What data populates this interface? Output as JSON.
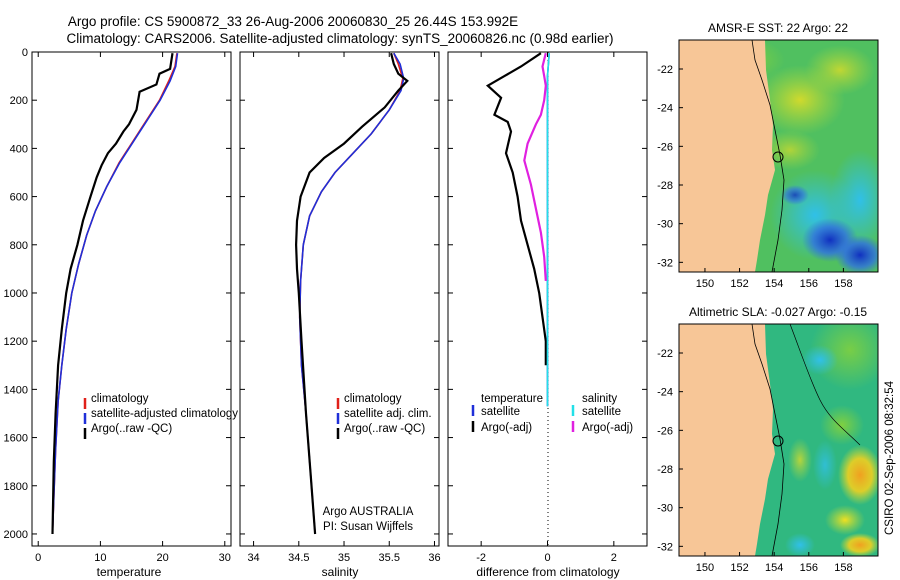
{
  "header": {
    "title_line1": "Argo profile: CS 5900872_33 26-Aug-2006 20060830_25 26.44S 153.992E",
    "title_line2": "Climatology: CARS2006. Satellite-adjusted climatology: synTS_20060826.nc (0.98d earlier)"
  },
  "credit": {
    "argo": "Argo AUSTRALIA",
    "pi": "PI: Susan Wijffels",
    "stamp": "CSIRO 02-Sep-2006 08:32:54"
  },
  "colors": {
    "climatology": "#e0201a",
    "satellite": "#1f2fd8",
    "argo": "#000000",
    "sal_sat": "#22e0e8",
    "sal_argo": "#e020e0",
    "land": "#f7c697"
  },
  "chart_data": [
    {
      "id": "temperature",
      "type": "line",
      "xlabel": "temperature",
      "xlim": [
        -1,
        31
      ],
      "ylim": [
        2050,
        0
      ],
      "y_reversed": true,
      "xticks": [
        0,
        10,
        20,
        30
      ],
      "yticks": [
        0,
        200,
        400,
        600,
        800,
        1000,
        1200,
        1400,
        1600,
        1800,
        2000
      ],
      "legend": [
        "climatology",
        "satellite-adjusted climatology",
        "Argo(..raw -QC)"
      ],
      "series": [
        {
          "name": "climatology",
          "x": [
            22.3,
            22.0,
            21.0,
            19.5,
            17.5,
            15.5,
            13.0,
            11.0,
            9.2,
            7.8,
            6.5,
            5.4,
            4.5,
            3.8,
            3.2,
            2.8,
            2.5,
            2.3
          ],
          "y": [
            5,
            60,
            120,
            200,
            280,
            360,
            460,
            560,
            660,
            760,
            880,
            1000,
            1150,
            1300,
            1450,
            1650,
            1850,
            2000
          ]
        },
        {
          "name": "satellite-adjusted climatology",
          "x": [
            22.4,
            22.1,
            21.2,
            19.6,
            17.6,
            15.6,
            13.1,
            11.0,
            9.2,
            7.8,
            6.5,
            5.4,
            4.5,
            3.8,
            3.2,
            2.8,
            2.5,
            2.3
          ],
          "y": [
            5,
            60,
            120,
            200,
            280,
            360,
            460,
            560,
            660,
            760,
            880,
            1000,
            1150,
            1300,
            1450,
            1650,
            1850,
            2000
          ]
        },
        {
          "name": "Argo(..raw -QC)",
          "x": [
            21.6,
            21.2,
            19.5,
            19.0,
            16.3,
            15.8,
            14.6,
            13.7,
            12.5,
            11.2,
            10.2,
            9.4,
            8.4,
            7.2,
            6.3,
            5.2,
            4.5,
            3.8,
            3.2,
            2.8,
            2.5,
            2.3
          ],
          "y": [
            5,
            70,
            90,
            135,
            165,
            240,
            300,
            330,
            380,
            420,
            470,
            520,
            600,
            700,
            800,
            900,
            1000,
            1150,
            1300,
            1500,
            1700,
            2000
          ]
        }
      ]
    },
    {
      "id": "salinity",
      "type": "line",
      "xlabel": "salinity",
      "xlim": [
        33.85,
        36.05
      ],
      "ylim": [
        2050,
        0
      ],
      "y_reversed": true,
      "xticks": [
        34,
        34.5,
        35,
        35.5,
        36
      ],
      "legend": [
        "climatology",
        "satellite adj. clim.",
        "Argo(..raw -QC)"
      ],
      "series": [
        {
          "name": "climatology",
          "x": [
            35.55,
            35.6,
            35.65,
            35.62,
            35.5,
            35.3,
            35.1,
            34.9,
            34.75,
            34.62,
            34.55,
            34.52,
            34.51,
            34.53,
            34.58,
            34.63,
            34.68
          ],
          "y": [
            5,
            50,
            110,
            160,
            240,
            340,
            420,
            500,
            580,
            680,
            800,
            950,
            1100,
            1300,
            1500,
            1750,
            2000
          ]
        },
        {
          "name": "satellite adj. clim.",
          "x": [
            35.55,
            35.62,
            35.66,
            35.63,
            35.5,
            35.3,
            35.1,
            34.9,
            34.75,
            34.62,
            34.55,
            34.52,
            34.51,
            34.53,
            34.58,
            34.63,
            34.68
          ],
          "y": [
            5,
            50,
            110,
            160,
            240,
            340,
            420,
            500,
            580,
            680,
            800,
            950,
            1100,
            1300,
            1500,
            1750,
            2000
          ]
        },
        {
          "name": "Argo(..raw -QC)",
          "x": [
            35.52,
            35.55,
            35.6,
            35.7,
            35.6,
            35.45,
            35.2,
            35.0,
            34.78,
            34.62,
            34.52,
            34.48,
            34.47,
            34.48,
            34.5,
            34.53,
            34.58,
            34.63,
            34.68
          ],
          "y": [
            5,
            50,
            90,
            120,
            160,
            230,
            310,
            380,
            440,
            500,
            600,
            700,
            800,
            900,
            1000,
            1200,
            1500,
            1750,
            2000
          ]
        }
      ]
    },
    {
      "id": "difference",
      "type": "line",
      "xlabel": "difference from climatology",
      "xlim": [
        -3,
        3
      ],
      "ylim": [
        2050,
        0
      ],
      "y_reversed": true,
      "xticks": [
        -2,
        0,
        2
      ],
      "legend_groups": [
        {
          "title": "temperature",
          "items": [
            "satellite",
            "Argo(-adj)"
          ]
        },
        {
          "title": "salinity",
          "items": [
            "satellite",
            "Argo(-adj)"
          ]
        }
      ],
      "series": [
        {
          "name": "temperature satellite",
          "x": [
            0.05,
            0.0,
            0.0,
            0.0,
            0.0
          ],
          "y": [
            5,
            100,
            500,
            1000,
            1470
          ]
        },
        {
          "name": "temperature Argo(-adj)",
          "x": [
            -0.2,
            -0.8,
            -1.3,
            -1.8,
            -1.4,
            -1.6,
            -1.2,
            -1.1,
            -1.25,
            -1.05,
            -0.9,
            -0.8,
            -0.6,
            -0.4,
            -0.25,
            -0.15,
            -0.05,
            -0.05
          ],
          "y": [
            5,
            60,
            100,
            140,
            190,
            260,
            290,
            330,
            420,
            500,
            600,
            700,
            800,
            900,
            1000,
            1100,
            1200,
            1300
          ]
        },
        {
          "name": "salinity satellite",
          "x": [
            0.05,
            0.0,
            0.0,
            0.0,
            0.0
          ],
          "y": [
            5,
            100,
            500,
            1000,
            1470
          ]
        },
        {
          "name": "salinity Argo(-adj)",
          "x": [
            -0.05,
            -0.15,
            -0.1,
            -0.05,
            -0.1,
            -0.2,
            -0.35,
            -0.6,
            -0.7,
            -0.6,
            -0.5,
            -0.35,
            -0.2,
            -0.1,
            -0.05
          ],
          "y": [
            5,
            60,
            100,
            140,
            200,
            260,
            300,
            380,
            450,
            500,
            550,
            650,
            750,
            850,
            950
          ]
        }
      ]
    },
    {
      "id": "sst_map",
      "type": "heatmap",
      "title": "AMSR-E SST: 22 Argo: 22",
      "xlim": [
        148.5,
        160
      ],
      "ylim": [
        -32.5,
        -20.5
      ],
      "xticks": [
        150,
        152,
        154,
        156,
        158
      ],
      "yticks": [
        -22,
        -24,
        -26,
        -28,
        -30,
        -32
      ]
    },
    {
      "id": "sla_map",
      "type": "heatmap",
      "title": "Altimetric SLA: -0.027 Argo: -0.15",
      "xlim": [
        148.5,
        160
      ],
      "ylim": [
        -32.5,
        -20.5
      ],
      "xticks": [
        150,
        152,
        154,
        156,
        158
      ],
      "yticks": [
        -22,
        -24,
        -26,
        -28,
        -30,
        -32
      ]
    }
  ]
}
